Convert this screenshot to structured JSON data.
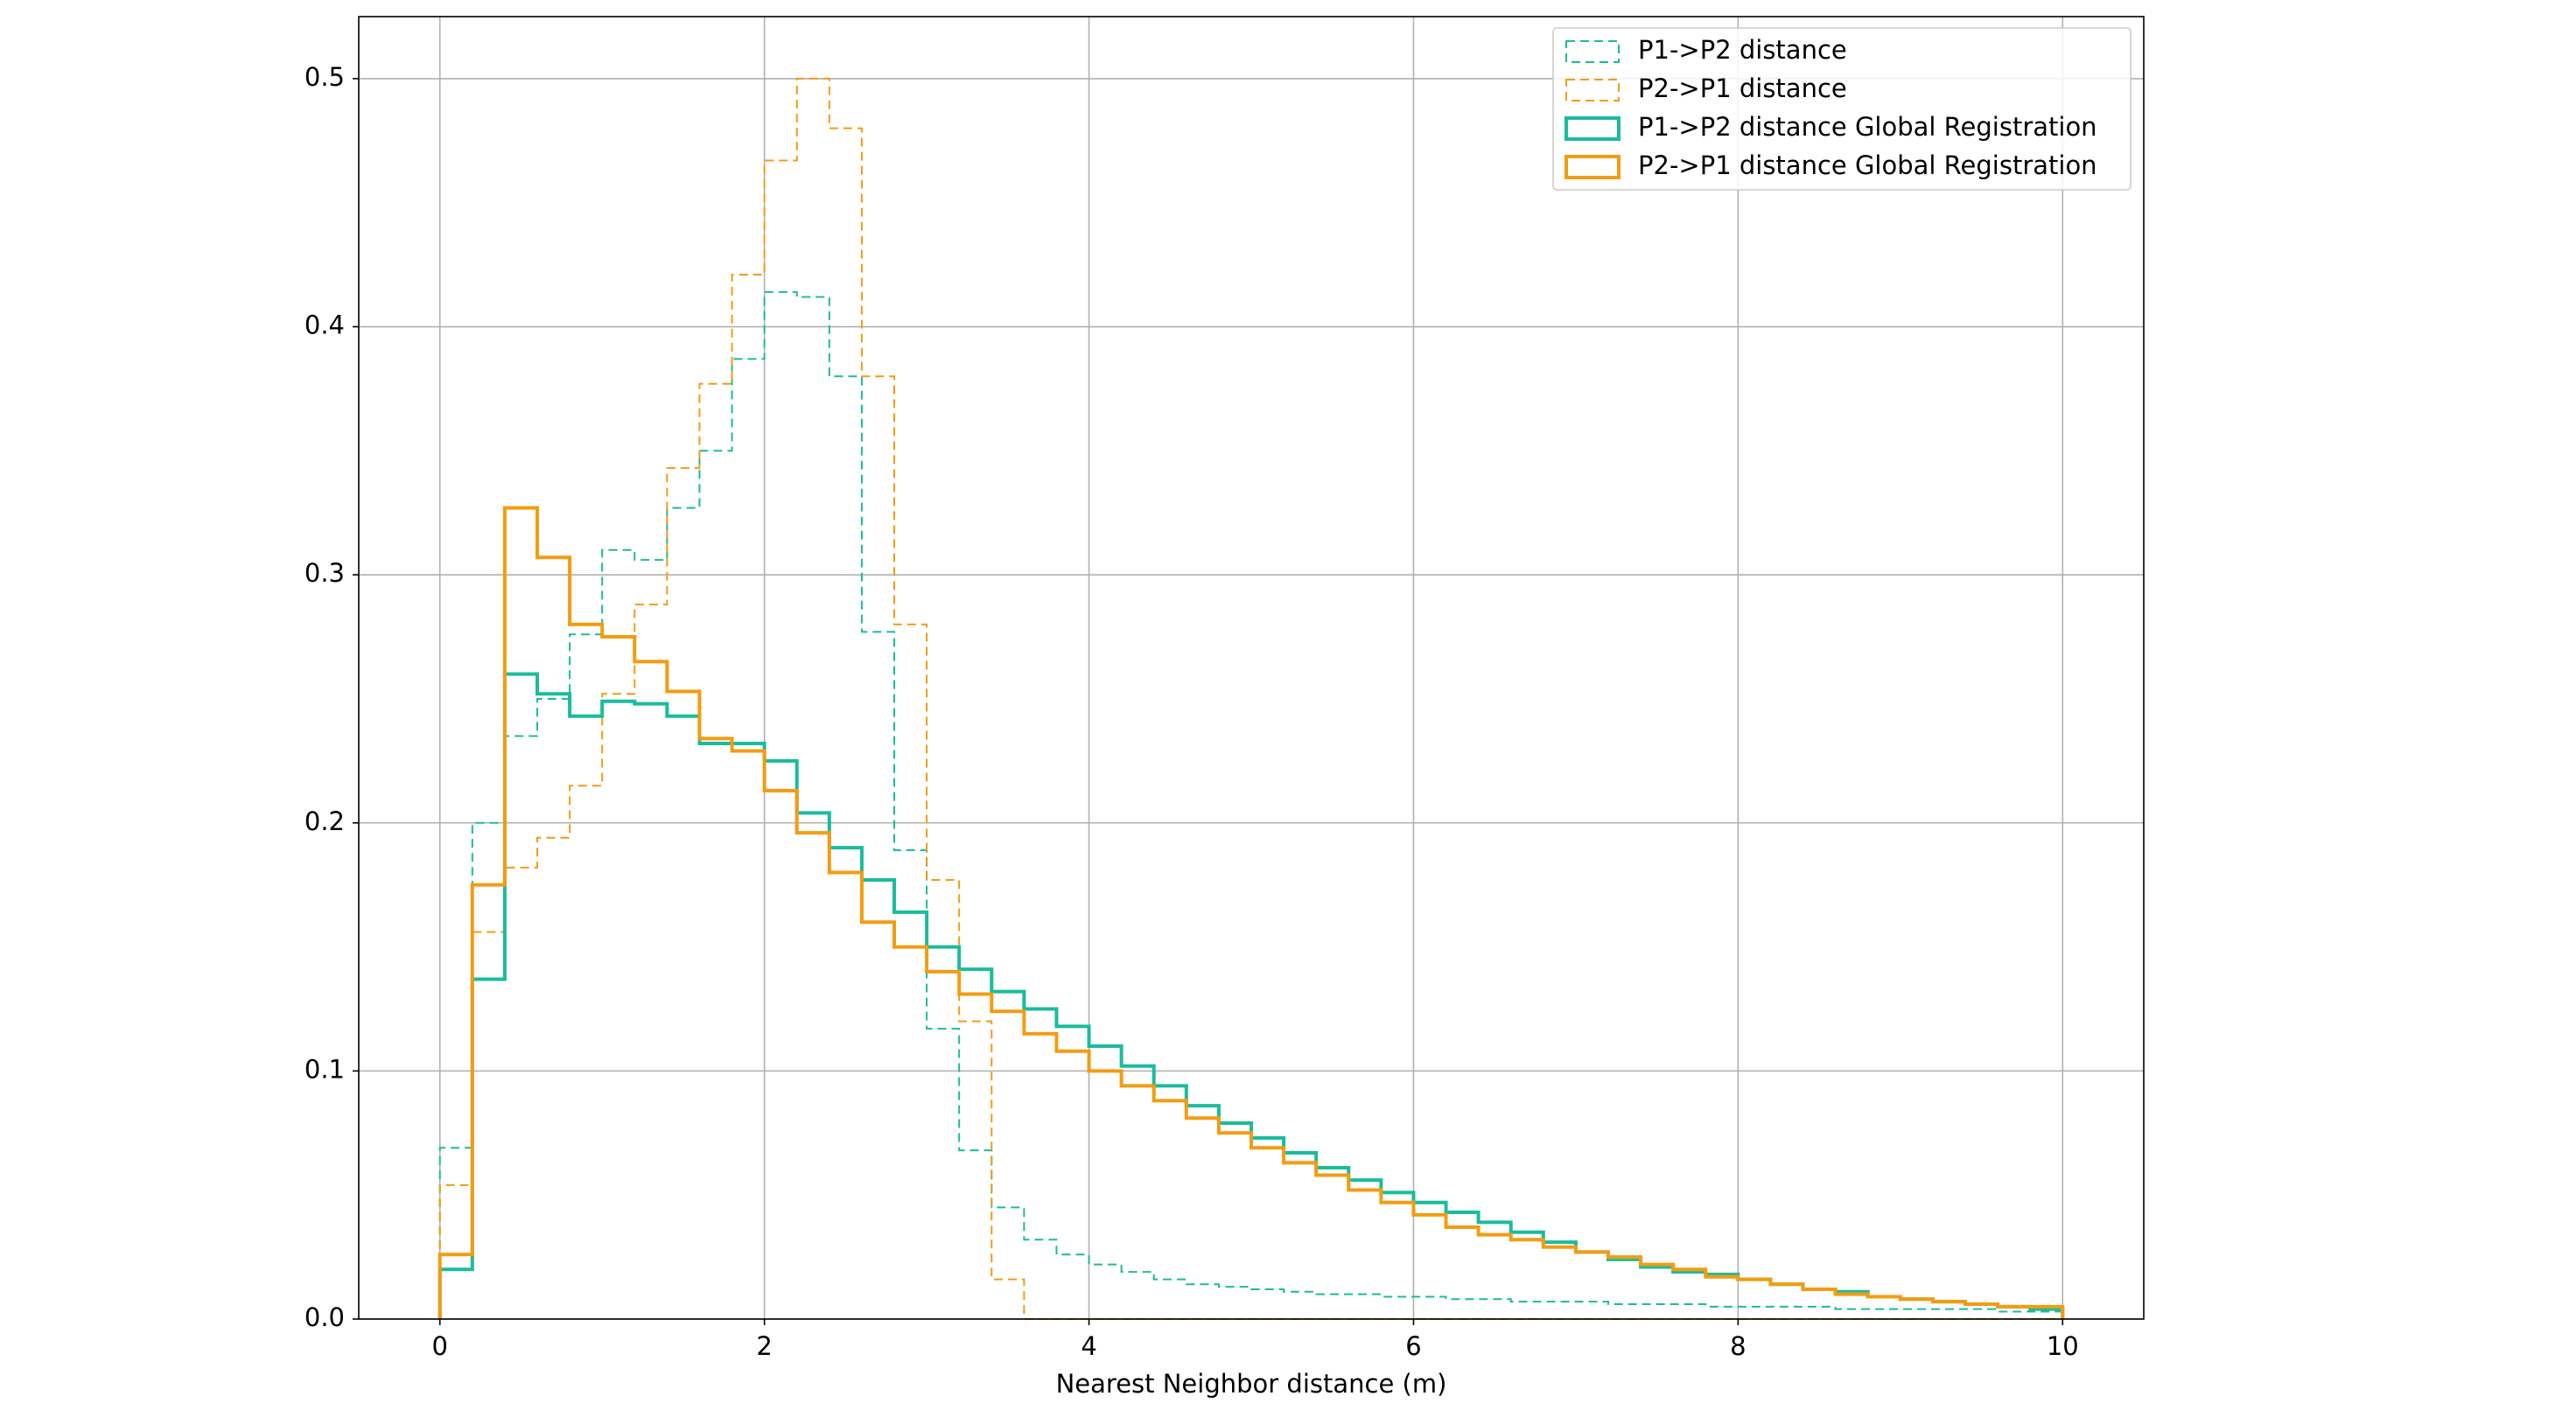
{
  "chart_data": {
    "type": "histogram",
    "xlabel": "Nearest Neighbor distance (m)",
    "bins": [
      0,
      0.2,
      0.4,
      0.6,
      0.8,
      1.0,
      1.2,
      1.4,
      1.6,
      1.8,
      2.0,
      2.2,
      2.4,
      2.6,
      2.8,
      3.0,
      3.2,
      3.4,
      3.6,
      3.8,
      4.0,
      4.2,
      4.4,
      4.6,
      4.8,
      5.0,
      5.2,
      5.4,
      5.6,
      5.8,
      6.0,
      6.2,
      6.4,
      6.6,
      6.8,
      7.0,
      7.2,
      7.4,
      7.6,
      7.8,
      8.0,
      8.2,
      8.4,
      8.6,
      8.8,
      9.0,
      9.2,
      9.4,
      9.6,
      9.8,
      10.0
    ],
    "series": [
      {
        "name": "P1->P2 distance",
        "color": "#1abc9c",
        "linestyle": "dashed",
        "values": [
          0.069,
          0.2,
          0.235,
          0.25,
          0.276,
          0.31,
          0.306,
          0.327,
          0.35,
          0.387,
          0.414,
          0.412,
          0.38,
          0.277,
          0.189,
          0.117,
          0.068,
          0.045,
          0.032,
          0.026,
          0.022,
          0.019,
          0.016,
          0.014,
          0.013,
          0.012,
          0.011,
          0.01,
          0.01,
          0.009,
          0.009,
          0.008,
          0.008,
          0.007,
          0.007,
          0.007,
          0.006,
          0.006,
          0.006,
          0.005,
          0.005,
          0.005,
          0.005,
          0.004,
          0.004,
          0.004,
          0.004,
          0.004,
          0.003,
          0.003
        ]
      },
      {
        "name": "P2->P1 distance",
        "color": "#f39c12",
        "linestyle": "dashed",
        "values": [
          0.054,
          0.156,
          0.182,
          0.194,
          0.215,
          0.252,
          0.288,
          0.343,
          0.377,
          0.421,
          0.467,
          0.5,
          0.48,
          0.38,
          0.28,
          0.177,
          0.12,
          0.016,
          0,
          0,
          0,
          0,
          0,
          0,
          0,
          0,
          0,
          0,
          0,
          0,
          0,
          0,
          0,
          0,
          0,
          0,
          0,
          0,
          0,
          0,
          0,
          0,
          0,
          0,
          0,
          0,
          0,
          0,
          0,
          0
        ]
      },
      {
        "name": "P1->P2 distance Global Registration",
        "color": "#1abc9c",
        "linestyle": "solid",
        "values": [
          0.02,
          0.137,
          0.26,
          0.252,
          0.243,
          0.249,
          0.248,
          0.243,
          0.232,
          0.232,
          0.225,
          0.204,
          0.19,
          0.177,
          0.164,
          0.15,
          0.141,
          0.132,
          0.125,
          0.118,
          0.11,
          0.102,
          0.094,
          0.086,
          0.079,
          0.073,
          0.067,
          0.061,
          0.056,
          0.051,
          0.047,
          0.043,
          0.039,
          0.035,
          0.031,
          0.027,
          0.024,
          0.021,
          0.019,
          0.018,
          0.016,
          0.014,
          0.012,
          0.011,
          0.009,
          0.008,
          0.007,
          0.006,
          0.005,
          0.004
        ]
      },
      {
        "name": "P2->P1 distance Global Registration",
        "color": "#f39c12",
        "linestyle": "solid",
        "values": [
          0.026,
          0.175,
          0.327,
          0.307,
          0.28,
          0.275,
          0.265,
          0.253,
          0.234,
          0.229,
          0.213,
          0.196,
          0.18,
          0.16,
          0.15,
          0.14,
          0.131,
          0.124,
          0.115,
          0.108,
          0.1,
          0.094,
          0.088,
          0.081,
          0.075,
          0.069,
          0.063,
          0.058,
          0.052,
          0.047,
          0.042,
          0.037,
          0.034,
          0.032,
          0.029,
          0.027,
          0.025,
          0.022,
          0.02,
          0.017,
          0.016,
          0.014,
          0.012,
          0.01,
          0.009,
          0.008,
          0.007,
          0.006,
          0.005,
          0.005
        ]
      }
    ],
    "xlim": [
      -0.5,
      10.5
    ],
    "xticks": [
      0,
      2,
      4,
      6,
      8,
      10
    ],
    "ylim": [
      0,
      0.525
    ],
    "yticks": [
      {
        "value": 0,
        "label": "0.0"
      },
      0.1,
      0.2,
      0.3,
      0.4,
      0.5
    ],
    "grid": true,
    "legend": "upper right"
  }
}
